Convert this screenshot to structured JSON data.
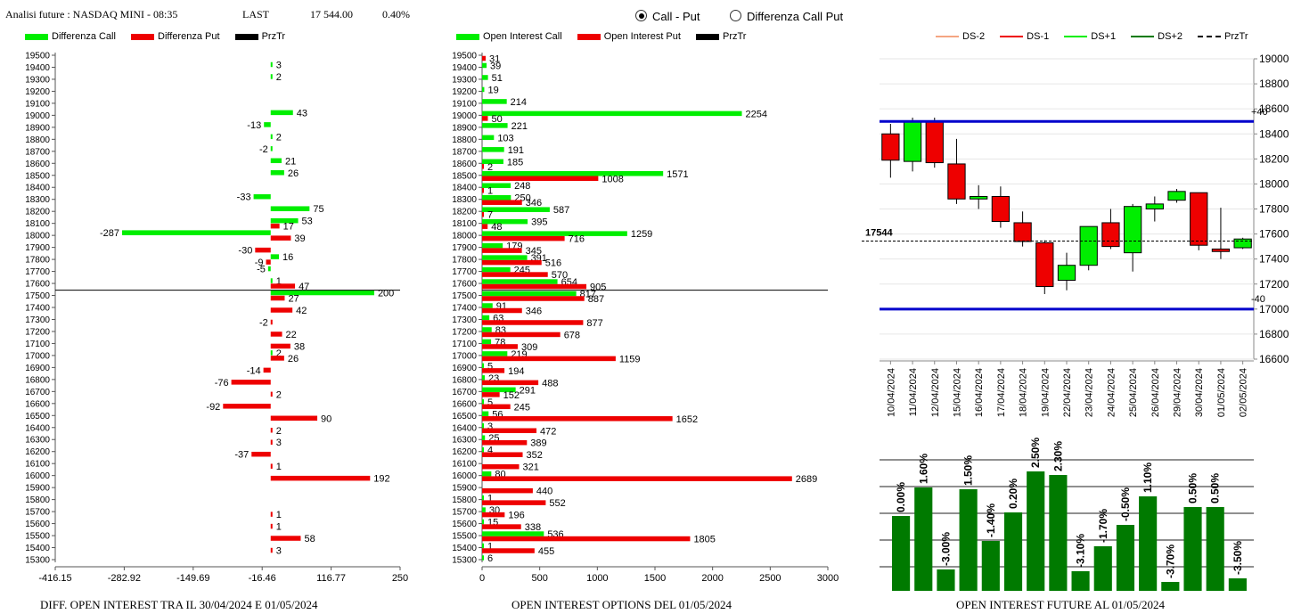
{
  "header": {
    "title": "Analisi future : NASDAQ MINI - 08:35",
    "last_label": "LAST",
    "last_value": "17 544.00",
    "change": "0.40%"
  },
  "radio": {
    "option1": "Call - Put",
    "option2": "Differenza Call Put",
    "selected": "option1"
  },
  "colors": {
    "green": "#00ee00",
    "red": "#ee0000",
    "black": "#000000",
    "blue": "#0000cc",
    "dark_green": "#007a00",
    "salmon": "#f4a582"
  },
  "footers": {
    "diff": "DIFF. OPEN INTEREST TRA IL 30/04/2024 E 01/05/2024",
    "oi": "OPEN INTEREST OPTIONS DEL 01/05/2024",
    "future": "OPEN INTEREST FUTURE AL 01/05/2024"
  },
  "chart_data": [
    {
      "type": "bar",
      "orientation": "horizontal",
      "legend": [
        "Differenza Call",
        "Differenza Put",
        "PrzTr"
      ],
      "strikes": [
        19500,
        19400,
        19300,
        19200,
        19100,
        19000,
        18900,
        18800,
        18700,
        18600,
        18500,
        18400,
        18300,
        18200,
        18100,
        18000,
        17900,
        17800,
        17700,
        17600,
        17500,
        17400,
        17300,
        17200,
        17100,
        17000,
        16900,
        16800,
        16700,
        16600,
        16500,
        16400,
        16300,
        16200,
        16100,
        16000,
        15900,
        15800,
        15700,
        15600,
        15500,
        15400,
        15300
      ],
      "series": [
        {
          "name": "Differenza Call",
          "values": [
            null,
            3,
            2,
            null,
            null,
            43,
            -13,
            2,
            -2,
            21,
            26,
            null,
            -33,
            75,
            53,
            -287,
            null,
            16,
            -5,
            1,
            200,
            null,
            null,
            null,
            null,
            2,
            null,
            null,
            null,
            null,
            null,
            null,
            null,
            null,
            null,
            null,
            null,
            null,
            null,
            null,
            null,
            null,
            null
          ]
        },
        {
          "name": "Differenza Put",
          "values": [
            null,
            null,
            null,
            null,
            null,
            null,
            null,
            null,
            null,
            null,
            null,
            null,
            null,
            null,
            17,
            39,
            -30,
            -9,
            null,
            47,
            27,
            42,
            -2,
            22,
            38,
            26,
            -14,
            -76,
            2,
            -92,
            90,
            2,
            3,
            -37,
            1,
            192,
            null,
            null,
            1,
            1,
            58,
            3,
            null
          ]
        }
      ],
      "xticks": [
        "-416.15",
        "-282.92",
        "-149.69",
        "-16.46",
        "116.77",
        "250"
      ],
      "xlim": [
        -416.15,
        250
      ],
      "przTr": 17544,
      "title": "DIFF. OPEN INTEREST TRA IL 30/04/2024 E 01/05/2024"
    },
    {
      "type": "bar",
      "orientation": "horizontal",
      "legend": [
        "Open Interest Call",
        "Open Interest Put",
        "PrzTr"
      ],
      "strikes": [
        19500,
        19400,
        19300,
        19200,
        19100,
        19000,
        18900,
        18800,
        18700,
        18600,
        18500,
        18400,
        18300,
        18200,
        18100,
        18000,
        17900,
        17800,
        17700,
        17600,
        17500,
        17400,
        17300,
        17200,
        17100,
        17000,
        16900,
        16800,
        16700,
        16600,
        16500,
        16400,
        16300,
        16200,
        16100,
        16000,
        15900,
        15800,
        15700,
        15600,
        15500,
        15400,
        15300
      ],
      "series": [
        {
          "name": "Open Interest Call",
          "values": [
            null,
            39,
            51,
            19,
            214,
            2254,
            221,
            103,
            191,
            185,
            1571,
            248,
            250,
            587,
            395,
            1259,
            179,
            391,
            245,
            654,
            817,
            91,
            63,
            83,
            78,
            219,
            5,
            23,
            291,
            5,
            56,
            3,
            25,
            4,
            null,
            80,
            null,
            1,
            30,
            15,
            536,
            1,
            6
          ]
        },
        {
          "name": "Open Interest Put",
          "values": [
            31,
            null,
            null,
            null,
            null,
            50,
            null,
            null,
            null,
            2,
            1008,
            1,
            346,
            7,
            48,
            716,
            345,
            516,
            570,
            905,
            887,
            346,
            877,
            678,
            309,
            1159,
            194,
            488,
            152,
            245,
            1652,
            472,
            389,
            352,
            321,
            2689,
            440,
            552,
            196,
            338,
            1805,
            455,
            null
          ]
        }
      ],
      "xticks": [
        "0",
        "500",
        "1000",
        "1500",
        "2000",
        "2500",
        "3000"
      ],
      "xlim": [
        0,
        3000
      ],
      "przTr": 17544,
      "title": "OPEN INTEREST OPTIONS DEL 01/05/2024"
    },
    {
      "type": "candlestick",
      "legend": [
        "DS-2",
        "DS-1",
        "DS+1",
        "DS+2",
        "PrzTr"
      ],
      "dates": [
        "10/04/2024",
        "11/04/2024",
        "12/04/2024",
        "15/04/2024",
        "16/04/2024",
        "17/04/2024",
        "18/04/2024",
        "19/04/2024",
        "22/04/2024",
        "23/04/2024",
        "24/04/2024",
        "25/04/2024",
        "26/04/2024",
        "29/04/2024",
        "30/04/2024",
        "01/05/2024",
        "02/05/2024"
      ],
      "candles": [
        {
          "open": 18400,
          "close": 18190,
          "high": 18480,
          "low": 18050
        },
        {
          "open": 18180,
          "close": 18500,
          "high": 18530,
          "low": 18100
        },
        {
          "open": 18500,
          "close": 18170,
          "high": 18530,
          "low": 18130
        },
        {
          "open": 18160,
          "close": 17880,
          "high": 18360,
          "low": 17840
        },
        {
          "open": 17880,
          "close": 17900,
          "high": 17990,
          "low": 17800
        },
        {
          "open": 17900,
          "close": 17700,
          "high": 17980,
          "low": 17650
        },
        {
          "open": 17690,
          "close": 17540,
          "high": 17780,
          "low": 17500
        },
        {
          "open": 17530,
          "close": 17180,
          "high": 17550,
          "low": 17120
        },
        {
          "open": 17230,
          "close": 17350,
          "high": 17450,
          "low": 17150
        },
        {
          "open": 17350,
          "close": 17660,
          "high": 17660,
          "low": 17310
        },
        {
          "open": 17690,
          "close": 17500,
          "high": 17800,
          "low": 17480
        },
        {
          "open": 17450,
          "close": 17820,
          "high": 17840,
          "low": 17300
        },
        {
          "open": 17800,
          "close": 17840,
          "high": 17900,
          "low": 17700
        },
        {
          "open": 17870,
          "close": 17940,
          "high": 17960,
          "low": 17850
        },
        {
          "open": 17930,
          "close": 17510,
          "high": 17930,
          "low": 17470
        },
        {
          "open": 17480,
          "close": 17460,
          "high": 17810,
          "low": 17400
        },
        {
          "open": 17490,
          "close": 17560,
          "high": 17570,
          "low": 17480
        }
      ],
      "yticks": [
        19000,
        18800,
        18600,
        18400,
        18200,
        18000,
        17800,
        17600,
        17400,
        17200,
        17000,
        16800,
        16600
      ],
      "ylim": [
        16600,
        19000
      ],
      "upper_band": {
        "value": 18500,
        "label": "+40"
      },
      "lower_band": {
        "value": 17000,
        "label": "-40"
      },
      "przTr": {
        "value": 17544,
        "label": "17544"
      }
    },
    {
      "type": "bar",
      "labels": [
        "0.00%",
        "1.60%",
        "-3.00%",
        "1.50%",
        "-1.40%",
        "0.20%",
        "2.50%",
        "2.30%",
        "-3.10%",
        "-1.70%",
        "-0.50%",
        "1.10%",
        "-3.70%",
        "0.50%",
        "0.50%",
        "-3.50%"
      ],
      "values": [
        0.0,
        1.6,
        -3.0,
        1.5,
        -1.4,
        0.2,
        2.5,
        2.3,
        -3.1,
        -1.7,
        -0.5,
        1.1,
        -3.7,
        0.5,
        0.5,
        -3.5
      ],
      "title": "OPEN INTEREST FUTURE AL 01/05/2024"
    }
  ]
}
